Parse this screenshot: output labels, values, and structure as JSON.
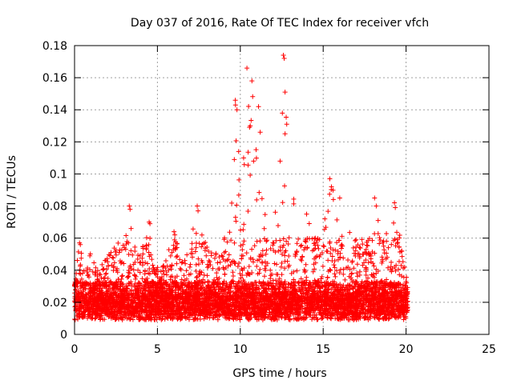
{
  "chart_data": {
    "type": "scatter",
    "title": "Day 037 of 2016, Rate Of TEC Index for receiver vfch",
    "xlabel": "GPS time / hours",
    "ylabel": "ROTI / TECUs",
    "xlim": [
      0,
      25
    ],
    "ylim": [
      0,
      0.18
    ],
    "xticks": [
      0,
      5,
      10,
      15,
      20,
      25
    ],
    "yticks": [
      0,
      0.02,
      0.04,
      0.06,
      0.08,
      0.1,
      0.12,
      0.14,
      0.16,
      0.18
    ],
    "xtick_labels": [
      "0",
      "5",
      "10",
      "15",
      "20",
      "25"
    ],
    "ytick_labels": [
      "0",
      "0.02",
      "0.04",
      "0.06",
      "0.08",
      "0.1",
      "0.12",
      "0.14",
      "0.16",
      "0.18"
    ],
    "grid": true,
    "marker": "+",
    "color": "#ff0000",
    "x_range_of_data": [
      0,
      20.1
    ],
    "envelope": [
      [
        0.0,
        0.035
      ],
      [
        0.3,
        0.057
      ],
      [
        0.6,
        0.04
      ],
      [
        1.0,
        0.052
      ],
      [
        1.5,
        0.042
      ],
      [
        2.0,
        0.048
      ],
      [
        2.5,
        0.06
      ],
      [
        3.0,
        0.058
      ],
      [
        3.3,
        0.08
      ],
      [
        3.6,
        0.055
      ],
      [
        4.0,
        0.052
      ],
      [
        4.5,
        0.07
      ],
      [
        4.8,
        0.045
      ],
      [
        5.2,
        0.04
      ],
      [
        5.6,
        0.05
      ],
      [
        6.0,
        0.064
      ],
      [
        6.5,
        0.048
      ],
      [
        7.0,
        0.057
      ],
      [
        7.4,
        0.08
      ],
      [
        7.8,
        0.06
      ],
      [
        8.2,
        0.05
      ],
      [
        8.6,
        0.06
      ],
      [
        9.0,
        0.064
      ],
      [
        9.5,
        0.095
      ],
      [
        9.7,
        0.146
      ],
      [
        10.0,
        0.11
      ],
      [
        10.3,
        0.132
      ],
      [
        10.4,
        0.166
      ],
      [
        10.6,
        0.158
      ],
      [
        10.9,
        0.142
      ],
      [
        11.2,
        0.1
      ],
      [
        11.6,
        0.075
      ],
      [
        12.0,
        0.082
      ],
      [
        12.4,
        0.11
      ],
      [
        12.6,
        0.174
      ],
      [
        12.8,
        0.13
      ],
      [
        13.1,
        0.095
      ],
      [
        13.5,
        0.07
      ],
      [
        14.0,
        0.075
      ],
      [
        14.5,
        0.065
      ],
      [
        15.0,
        0.06
      ],
      [
        15.4,
        0.097
      ],
      [
        15.8,
        0.085
      ],
      [
        16.2,
        0.06
      ],
      [
        16.7,
        0.078
      ],
      [
        17.2,
        0.06
      ],
      [
        17.7,
        0.058
      ],
      [
        18.1,
        0.085
      ],
      [
        18.6,
        0.06
      ],
      [
        19.0,
        0.068
      ],
      [
        19.3,
        0.083
      ],
      [
        19.7,
        0.06
      ],
      [
        20.1,
        0.03
      ]
    ],
    "outliers": [
      [
        12.6,
        0.174
      ],
      [
        12.65,
        0.172
      ],
      [
        10.4,
        0.166
      ],
      [
        10.7,
        0.158
      ],
      [
        12.7,
        0.151
      ],
      [
        9.7,
        0.146
      ],
      [
        9.8,
        0.14
      ],
      [
        11.1,
        0.142
      ],
      [
        10.6,
        0.13
      ],
      [
        11.2,
        0.126
      ],
      [
        12.8,
        0.131
      ],
      [
        12.7,
        0.125
      ],
      [
        9.9,
        0.114
      ],
      [
        10.2,
        0.11
      ],
      [
        10.8,
        0.108
      ],
      [
        12.4,
        0.108
      ],
      [
        15.4,
        0.097
      ],
      [
        15.5,
        0.092
      ],
      [
        16.0,
        0.085
      ],
      [
        18.1,
        0.085
      ],
      [
        18.2,
        0.08
      ],
      [
        19.3,
        0.082
      ],
      [
        19.35,
        0.079
      ],
      [
        3.3,
        0.08
      ],
      [
        3.35,
        0.078
      ],
      [
        7.4,
        0.08
      ],
      [
        7.45,
        0.077
      ],
      [
        4.5,
        0.07
      ],
      [
        4.55,
        0.069
      ],
      [
        6.0,
        0.064
      ],
      [
        6.05,
        0.062
      ],
      [
        0.3,
        0.057
      ],
      [
        0.35,
        0.056
      ],
      [
        14.0,
        0.075
      ],
      [
        15.1,
        0.072
      ]
    ]
  }
}
